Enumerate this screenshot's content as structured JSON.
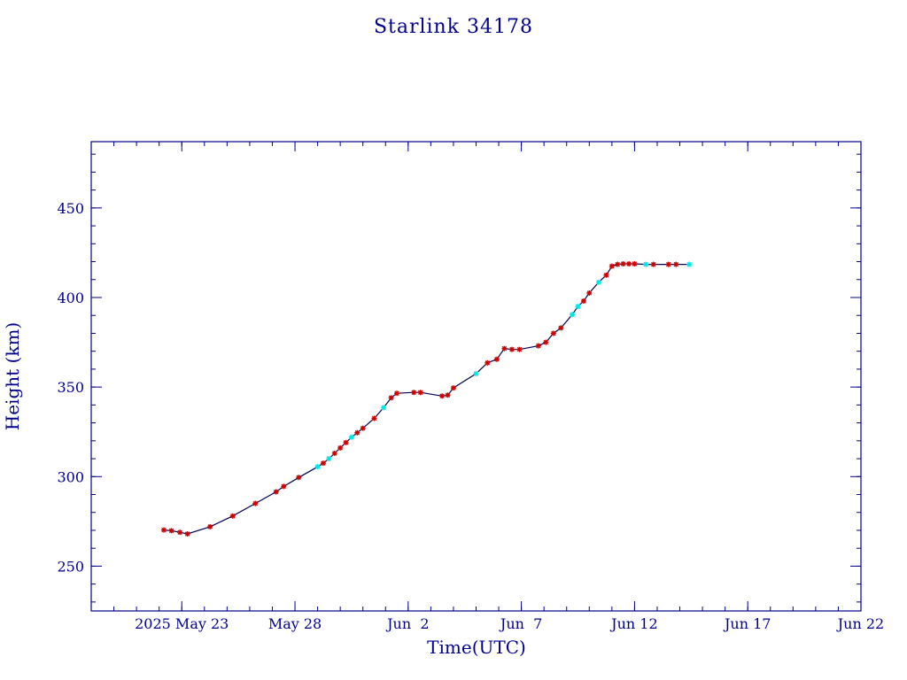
{
  "chart_data": {
    "type": "line",
    "title": "Starlink 34178",
    "xlabel": "Time(UTC)",
    "ylabel": "Height (km)",
    "x_type": "date",
    "xlim": [
      "2025-05-19",
      "2025-06-22"
    ],
    "ylim": [
      225,
      487
    ],
    "x_ticks": [
      {
        "date": "2025-05-23",
        "label": "2025 May 23"
      },
      {
        "date": "2025-05-28",
        "label": "May 28"
      },
      {
        "date": "2025-06-02",
        "label": "Jun  2"
      },
      {
        "date": "2025-06-07",
        "label": "Jun  7"
      },
      {
        "date": "2025-06-12",
        "label": "Jun 12"
      },
      {
        "date": "2025-06-17",
        "label": "Jun 17"
      },
      {
        "date": "2025-06-22",
        "label": "Jun 22"
      }
    ],
    "y_ticks": [
      250,
      300,
      350,
      400,
      450
    ],
    "grid": false,
    "marker_colors": {
      "red": "#cc0000",
      "cyan": "#00e5e5"
    },
    "series": [
      {
        "points": [
          {
            "x": "2025-05-22 05:00",
            "y": 270.2,
            "c": "red"
          },
          {
            "x": "2025-05-22 13:00",
            "y": 269.8,
            "c": "red"
          },
          {
            "x": "2025-05-22 22:00",
            "y": 268.9,
            "c": "red"
          },
          {
            "x": "2025-05-23 06:00",
            "y": 268.0,
            "c": "red"
          },
          {
            "x": "2025-05-24 06:00",
            "y": 272.0,
            "c": "red"
          },
          {
            "x": "2025-05-25 06:00",
            "y": 278.0,
            "c": "red"
          },
          {
            "x": "2025-05-26 06:00",
            "y": 285.0,
            "c": "red"
          },
          {
            "x": "2025-05-27 04:00",
            "y": 291.5,
            "c": "red"
          },
          {
            "x": "2025-05-27 12:00",
            "y": 294.5,
            "c": "red"
          },
          {
            "x": "2025-05-28 04:00",
            "y": 299.5,
            "c": "red"
          },
          {
            "x": "2025-05-29 00:00",
            "y": 305.5,
            "c": "cyan"
          },
          {
            "x": "2025-05-29 06:00",
            "y": 307.5,
            "c": "red"
          },
          {
            "x": "2025-05-29 12:00",
            "y": 310.0,
            "c": "cyan"
          },
          {
            "x": "2025-05-29 18:00",
            "y": 313.0,
            "c": "red"
          },
          {
            "x": "2025-05-30 00:00",
            "y": 316.0,
            "c": "red"
          },
          {
            "x": "2025-05-30 06:00",
            "y": 319.0,
            "c": "red"
          },
          {
            "x": "2025-05-30 12:00",
            "y": 322.0,
            "c": "cyan"
          },
          {
            "x": "2025-05-30 18:00",
            "y": 324.5,
            "c": "red"
          },
          {
            "x": "2025-05-31 00:00",
            "y": 327.0,
            "c": "red"
          },
          {
            "x": "2025-05-31 12:00",
            "y": 332.5,
            "c": "red"
          },
          {
            "x": "2025-05-31 22:00",
            "y": 338.5,
            "c": "cyan"
          },
          {
            "x": "2025-06-01 06:00",
            "y": 344.0,
            "c": "red"
          },
          {
            "x": "2025-06-01 12:00",
            "y": 346.5,
            "c": "red"
          },
          {
            "x": "2025-06-02 06:00",
            "y": 347.0,
            "c": "red"
          },
          {
            "x": "2025-06-02 13:00",
            "y": 347.0,
            "c": "red"
          },
          {
            "x": "2025-06-03 12:00",
            "y": 345.0,
            "c": "red"
          },
          {
            "x": "2025-06-03 18:00",
            "y": 345.5,
            "c": "red"
          },
          {
            "x": "2025-06-04 00:00",
            "y": 349.5,
            "c": "red"
          },
          {
            "x": "2025-06-05 00:00",
            "y": 357.5,
            "c": "cyan"
          },
          {
            "x": "2025-06-05 12:00",
            "y": 363.5,
            "c": "red"
          },
          {
            "x": "2025-06-05 22:00",
            "y": 365.5,
            "c": "red"
          },
          {
            "x": "2025-06-06 06:00",
            "y": 371.5,
            "c": "red"
          },
          {
            "x": "2025-06-06 14:00",
            "y": 371.0,
            "c": "red"
          },
          {
            "x": "2025-06-06 22:00",
            "y": 371.0,
            "c": "red"
          },
          {
            "x": "2025-06-07 18:00",
            "y": 373.0,
            "c": "red"
          },
          {
            "x": "2025-06-08 02:00",
            "y": 375.0,
            "c": "red"
          },
          {
            "x": "2025-06-08 10:00",
            "y": 380.0,
            "c": "red"
          },
          {
            "x": "2025-06-08 18:00",
            "y": 383.0,
            "c": "red"
          },
          {
            "x": "2025-06-09 06:00",
            "y": 390.5,
            "c": "cyan"
          },
          {
            "x": "2025-06-09 12:00",
            "y": 395.0,
            "c": "cyan"
          },
          {
            "x": "2025-06-09 18:00",
            "y": 398.0,
            "c": "red"
          },
          {
            "x": "2025-06-10 00:00",
            "y": 402.5,
            "c": "red"
          },
          {
            "x": "2025-06-10 10:00",
            "y": 408.5,
            "c": "cyan"
          },
          {
            "x": "2025-06-10 18:00",
            "y": 412.5,
            "c": "red"
          },
          {
            "x": "2025-06-11 00:00",
            "y": 417.5,
            "c": "red"
          },
          {
            "x": "2025-06-11 06:00",
            "y": 418.5,
            "c": "red"
          },
          {
            "x": "2025-06-11 12:00",
            "y": 418.8,
            "c": "red"
          },
          {
            "x": "2025-06-11 18:00",
            "y": 418.8,
            "c": "red"
          },
          {
            "x": "2025-06-12 00:00",
            "y": 418.8,
            "c": "red"
          },
          {
            "x": "2025-06-12 12:00",
            "y": 418.5,
            "c": "cyan"
          },
          {
            "x": "2025-06-12 20:00",
            "y": 418.5,
            "c": "red"
          },
          {
            "x": "2025-06-13 12:00",
            "y": 418.5,
            "c": "red"
          },
          {
            "x": "2025-06-13 20:00",
            "y": 418.5,
            "c": "red"
          },
          {
            "x": "2025-06-14 10:00",
            "y": 418.5,
            "c": "cyan"
          }
        ]
      }
    ]
  }
}
